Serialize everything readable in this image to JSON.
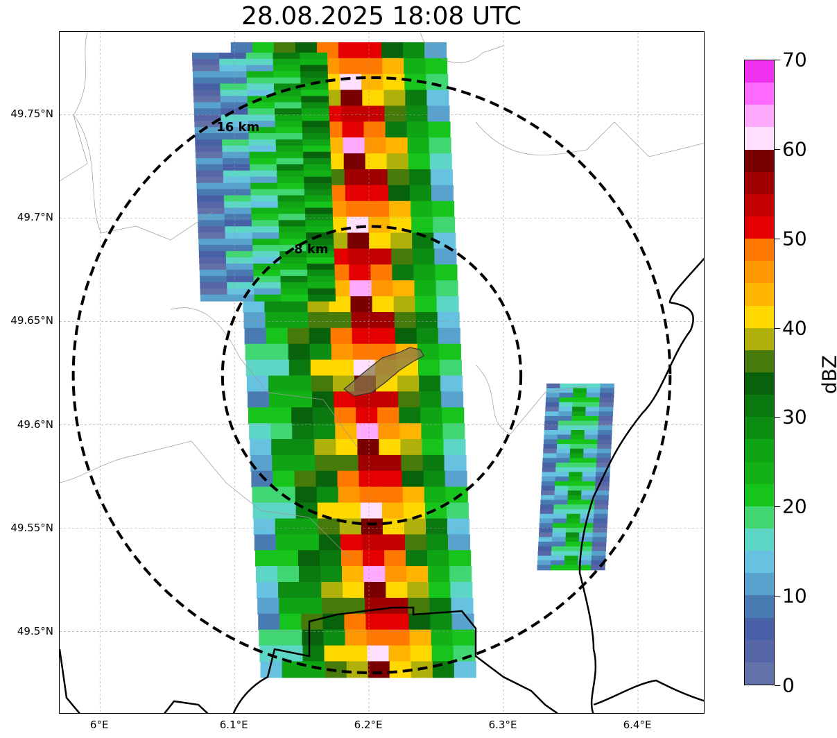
{
  "title": "28.08.2025 18:08 UTC",
  "map": {
    "lon_range": [
      5.97,
      6.45
    ],
    "lat_range": [
      49.46,
      49.79
    ],
    "lat_ticks": [
      {
        "value": 49.75,
        "label": "49.75°N"
      },
      {
        "value": 49.7,
        "label": "49.7°N"
      },
      {
        "value": 49.65,
        "label": "49.65°N"
      },
      {
        "value": 49.6,
        "label": "49.6°N"
      },
      {
        "value": 49.55,
        "label": "49.55°N"
      },
      {
        "value": 49.5,
        "label": "49.5°N"
      }
    ],
    "lon_ticks": [
      {
        "value": 6.0,
        "label": "6°E"
      },
      {
        "value": 6.1,
        "label": "6.1°E"
      },
      {
        "value": 6.2,
        "label": "6.2°E"
      },
      {
        "value": 6.3,
        "label": "6.3°E"
      },
      {
        "value": 6.4,
        "label": "6.4°E"
      }
    ],
    "grid": true,
    "radar_center": {
      "lon": 6.202,
      "lat": 49.624
    },
    "range_rings": [
      {
        "range_km": 8,
        "label": "8 km"
      },
      {
        "range_km": 16,
        "label": "16 km"
      }
    ],
    "highlight_area_color": "#8a7a4a"
  },
  "colorbar": {
    "label": "dBZ",
    "min": 0,
    "max": 70,
    "ticks": [
      {
        "value": 0,
        "label": "0"
      },
      {
        "value": 10,
        "label": "10"
      },
      {
        "value": 20,
        "label": "20"
      },
      {
        "value": 30,
        "label": "30"
      },
      {
        "value": 40,
        "label": "40"
      },
      {
        "value": 50,
        "label": "50"
      },
      {
        "value": 60,
        "label": "60"
      },
      {
        "value": 70,
        "label": "70"
      }
    ],
    "colors": [
      "#6272a8",
      "#5565a5",
      "#4860a6",
      "#4a7ab2",
      "#58a2cd",
      "#66c2e0",
      "#5ed6c6",
      "#40d672",
      "#16c41c",
      "#12b216",
      "#0fa414",
      "#0c8c12",
      "#0a7a10",
      "#08620c",
      "#467a0a",
      "#b0b00a",
      "#ffd800",
      "#ffb400",
      "#ff9800",
      "#ff7800",
      "#e40000",
      "#c40000",
      "#a00000",
      "#7a0000",
      "#ffe0ff",
      "#ffaaff",
      "#ff6cff",
      "#f032f0"
    ]
  },
  "radar_bands": [
    {
      "lat0": 49.785,
      "lat1": 49.478,
      "lon0": 6.125,
      "lon1": 6.285,
      "values": [
        14,
        22,
        30,
        34,
        44,
        56,
        48,
        38,
        26,
        16
      ]
    },
    {
      "lat0": 49.78,
      "lat1": 49.66,
      "lon0": 6.08,
      "lon1": 6.18,
      "values": [
        6,
        12,
        18,
        24,
        28
      ]
    },
    {
      "lat0": 49.62,
      "lat1": 49.53,
      "lon0": 6.33,
      "lon1": 6.38,
      "values": [
        8,
        14,
        22,
        16,
        6
      ]
    }
  ]
}
